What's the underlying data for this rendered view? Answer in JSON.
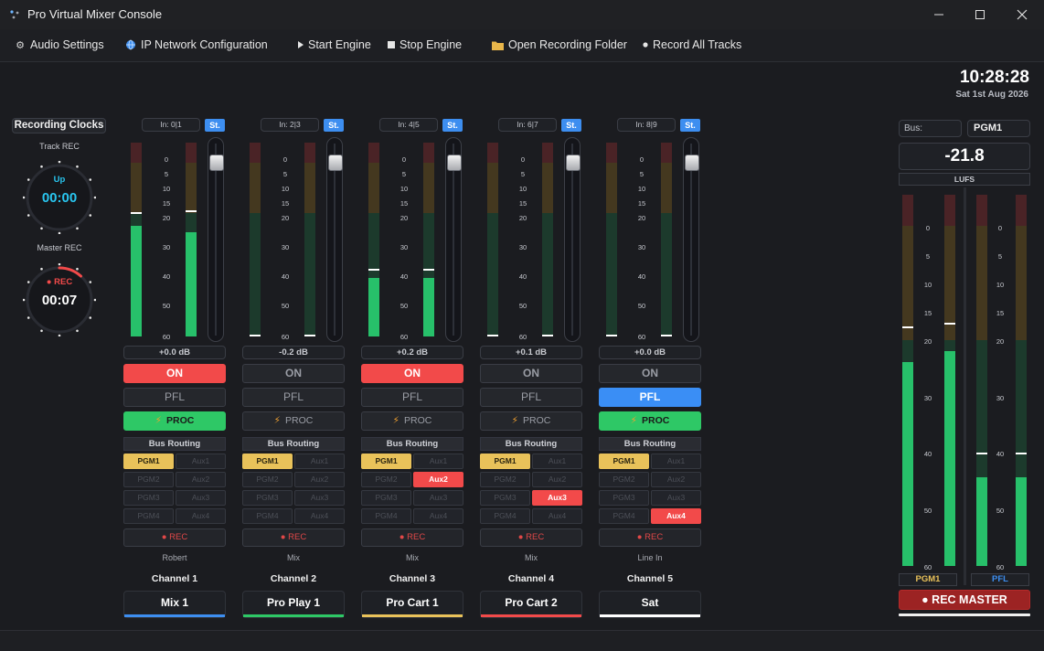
{
  "window": {
    "title": "Pro Virtual Mixer Console",
    "icons": [
      "app-logo-icon",
      "minimize-icon",
      "maximize-icon",
      "close-icon"
    ]
  },
  "menu": [
    {
      "label": "Audio Settings",
      "icon": "gear-icon"
    },
    {
      "label": "IP Network Configuration",
      "icon": "globe-icon"
    },
    {
      "label": "Start Engine",
      "icon": "play-icon"
    },
    {
      "label": "Stop Engine",
      "icon": "stop-icon"
    },
    {
      "label": "Open Recording Folder",
      "icon": "folder-icon"
    },
    {
      "label": "Record All Tracks",
      "icon": "dot-icon"
    }
  ],
  "clock": {
    "time": "10:28:28",
    "date": "Sat 1st Aug 2026"
  },
  "recording_clocks": {
    "title": "Recording Clocks",
    "track": {
      "label": "Track REC",
      "small": "Up",
      "time": "00:00",
      "color": "#29c6f0"
    },
    "master": {
      "label": "Master REC",
      "small": "● REC",
      "time": "00:07",
      "color": "#f24a4a"
    }
  },
  "scale_labels": [
    "0",
    "5",
    "10",
    "15",
    "20",
    "30",
    "40",
    "50",
    "60"
  ],
  "bus_routing_title": "Bus Routing",
  "rec_label": "● REC",
  "channels": [
    {
      "input": "In: 0|1",
      "stereo": "St.",
      "levels": [
        0.57,
        0.54
      ],
      "peaks": [
        0.63,
        0.64
      ],
      "fader": 0.0,
      "gain": "+0.0 dB",
      "on": "ON",
      "on_active": true,
      "pfl": "PFL",
      "pfl_active": false,
      "proc": "PROC",
      "proc_active": true,
      "bus": [
        {
          "label": "PGM1",
          "on": true
        },
        {
          "label": "Aux1",
          "on": false
        },
        {
          "label": "PGM2",
          "on": false
        },
        {
          "label": "Aux2",
          "on": false
        },
        {
          "label": "PGM3",
          "on": false
        },
        {
          "label": "Aux3",
          "on": false
        },
        {
          "label": "PGM4",
          "on": false
        },
        {
          "label": "Aux4",
          "on": false
        }
      ],
      "source": "Robert",
      "channel": "Channel 1",
      "name": "Mix 1",
      "color": "#3d8ef0"
    },
    {
      "input": "In: 2|3",
      "stereo": "St.",
      "levels": [
        0.0,
        0.0
      ],
      "peaks": [
        0.0,
        0.0
      ],
      "fader": 0.0,
      "gain": "-0.2 dB",
      "on": "ON",
      "on_active": false,
      "pfl": "PFL",
      "pfl_active": false,
      "proc": "PROC",
      "proc_active": false,
      "bus": [
        {
          "label": "PGM1",
          "on": true
        },
        {
          "label": "Aux1",
          "on": false
        },
        {
          "label": "PGM2",
          "on": false
        },
        {
          "label": "Aux2",
          "on": false
        },
        {
          "label": "PGM3",
          "on": false
        },
        {
          "label": "Aux3",
          "on": false
        },
        {
          "label": "PGM4",
          "on": false
        },
        {
          "label": "Aux4",
          "on": false
        }
      ],
      "source": "Mix",
      "channel": "Channel 2",
      "name": "Pro Play 1",
      "color": "#2ec866"
    },
    {
      "input": "In: 4|5",
      "stereo": "St.",
      "levels": [
        0.3,
        0.3
      ],
      "peaks": [
        0.34,
        0.34
      ],
      "fader": 0.0,
      "gain": "+0.2 dB",
      "on": "ON",
      "on_active": true,
      "pfl": "PFL",
      "pfl_active": false,
      "proc": "PROC",
      "proc_active": false,
      "bus": [
        {
          "label": "PGM1",
          "on": true
        },
        {
          "label": "Aux1",
          "on": false
        },
        {
          "label": "PGM2",
          "on": false
        },
        {
          "label": "Aux2",
          "on": true
        },
        {
          "label": "PGM3",
          "on": false
        },
        {
          "label": "Aux3",
          "on": false
        },
        {
          "label": "PGM4",
          "on": false
        },
        {
          "label": "Aux4",
          "on": false
        }
      ],
      "source": "Mix",
      "channel": "Channel 3",
      "name": "Pro Cart  1",
      "color": "#e9c25a"
    },
    {
      "input": "In: 6|7",
      "stereo": "St.",
      "levels": [
        0.0,
        0.0
      ],
      "peaks": [
        0.0,
        0.0
      ],
      "fader": 0.0,
      "gain": "+0.1 dB",
      "on": "ON",
      "on_active": false,
      "pfl": "PFL",
      "pfl_active": false,
      "proc": "PROC",
      "proc_active": false,
      "bus": [
        {
          "label": "PGM1",
          "on": true
        },
        {
          "label": "Aux1",
          "on": false
        },
        {
          "label": "PGM2",
          "on": false
        },
        {
          "label": "Aux2",
          "on": false
        },
        {
          "label": "PGM3",
          "on": false
        },
        {
          "label": "Aux3",
          "on": true
        },
        {
          "label": "PGM4",
          "on": false
        },
        {
          "label": "Aux4",
          "on": false
        }
      ],
      "source": "Mix",
      "channel": "Channel 4",
      "name": "Pro Cart  2",
      "color": "#f24a4a"
    },
    {
      "input": "In: 8|9",
      "stereo": "St.",
      "levels": [
        0.0,
        0.0
      ],
      "peaks": [
        0.0,
        0.0
      ],
      "fader": 0.0,
      "gain": "+0.0 dB",
      "on": "ON",
      "on_active": false,
      "pfl": "PFL",
      "pfl_active": true,
      "proc": "PROC",
      "proc_active": true,
      "bus": [
        {
          "label": "PGM1",
          "on": true
        },
        {
          "label": "Aux1",
          "on": false
        },
        {
          "label": "PGM2",
          "on": false
        },
        {
          "label": "Aux2",
          "on": false
        },
        {
          "label": "PGM3",
          "on": false
        },
        {
          "label": "Aux3",
          "on": false
        },
        {
          "label": "PGM4",
          "on": false
        },
        {
          "label": "Aux4",
          "on": true
        }
      ],
      "source": "Line In",
      "channel": "Channel 5",
      "name": "Sat",
      "color": "#ffffff"
    }
  ],
  "master": {
    "bus_label": "Bus:",
    "bus_value": "PGM1",
    "lufs_value": "-21.8",
    "lufs_label": "LUFS",
    "pgm_levels": [
      0.55,
      0.58
    ],
    "pgm_peaks": [
      0.64,
      0.65
    ],
    "pfl_levels": [
      0.24,
      0.24
    ],
    "pfl_peaks": [
      0.3,
      0.3
    ],
    "pgm_tag": "PGM1",
    "pfl_tag": "PFL",
    "rec_master": "● REC MASTER"
  }
}
